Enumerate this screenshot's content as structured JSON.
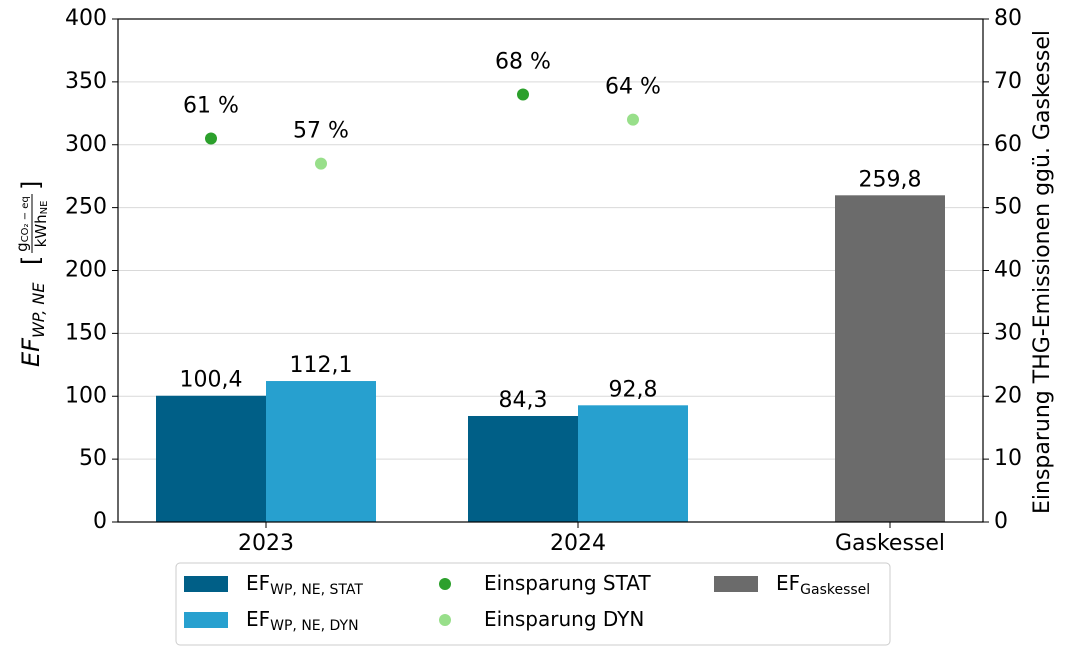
{
  "chart_data": {
    "type": "bar",
    "categories": [
      "2023",
      "2024",
      "Gaskessel"
    ],
    "y_label": {
      "main": "EF",
      "sub": "WP, NE",
      "open": "[",
      "num": "g",
      "num_sub": "CO₂ − eq",
      "den": "kWh",
      "den_sub": "NE",
      "close": "]"
    },
    "y2_label": "Einsparung THG-Emissionen ggü. Gaskessel",
    "ylim": [
      0,
      400
    ],
    "yticks": [
      0,
      50,
      100,
      150,
      200,
      250,
      300,
      350,
      400
    ],
    "y2lim": [
      0,
      80
    ],
    "y2ticks": [
      0,
      10,
      20,
      30,
      40,
      50,
      60,
      70,
      80
    ],
    "grid": true,
    "series": [
      {
        "name": "EF",
        "subscript": "WP, NE, STAT",
        "type": "bar",
        "color": "#005f87",
        "values": [
          100.4,
          84.3,
          null
        ],
        "value_labels": [
          "100,4",
          "84,3",
          null
        ]
      },
      {
        "name": "EF",
        "subscript": "WP, NE, DYN",
        "type": "bar",
        "color": "#27a0cf",
        "values": [
          112.1,
          92.8,
          null
        ],
        "value_labels": [
          "112,1",
          "92,8",
          null
        ]
      },
      {
        "name": "Einsparung STAT",
        "type": "scatter",
        "axis": "y2",
        "color": "#2ca02c",
        "values": [
          61,
          68,
          null
        ],
        "value_labels": [
          "61 %",
          "68 %",
          null
        ]
      },
      {
        "name": "Einsparung DYN",
        "type": "scatter",
        "axis": "y2",
        "color": "#98df8a",
        "values": [
          57,
          64,
          null
        ],
        "value_labels": [
          "57 %",
          "64 %",
          null
        ]
      },
      {
        "name": "EF",
        "subscript": "Gaskessel",
        "type": "bar",
        "color": "#6b6b6b",
        "values": [
          null,
          null,
          259.8
        ],
        "value_labels": [
          null,
          null,
          "259,8"
        ]
      }
    ],
    "legend": "lower center"
  }
}
